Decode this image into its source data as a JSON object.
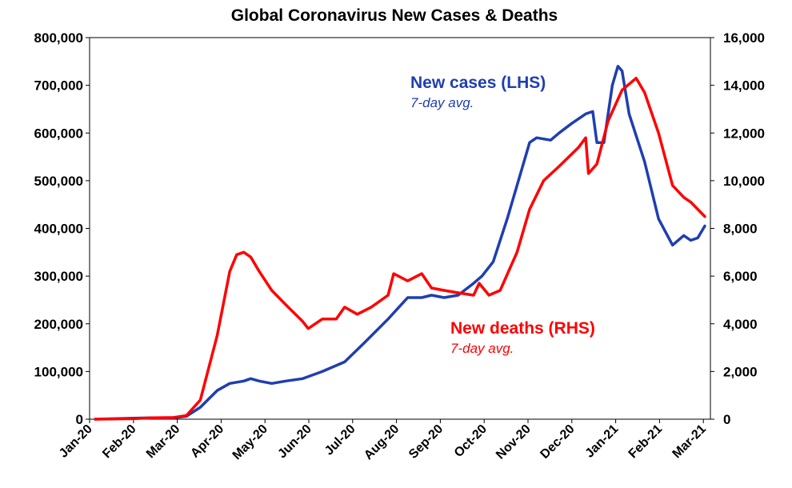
{
  "chart_data": {
    "type": "line",
    "title": "Global Coronavirus New Cases & Deaths",
    "x_tick_labels": [
      "Jan-20",
      "Feb-20",
      "Mar-20",
      "Apr-20",
      "May-20",
      "Jun-20",
      "Jul-20",
      "Aug-20",
      "Sep-20",
      "Oct-20",
      "Nov-20",
      "Dec-20",
      "Jan-21",
      "Feb-21",
      "Mar-21"
    ],
    "y_left": {
      "ylim": [
        0,
        800000
      ],
      "ticks": [
        "0",
        "100,000",
        "200,000",
        "300,000",
        "400,000",
        "500,000",
        "600,000",
        "700,000",
        "800,000"
      ]
    },
    "y_right": {
      "ylim": [
        0,
        16000
      ],
      "ticks": [
        "0",
        "2,000",
        "4,000",
        "6,000",
        "8,000",
        "10,000",
        "12,000",
        "14,000",
        "16,000"
      ]
    },
    "grid": false,
    "annotations": {
      "cases_label": "New cases (LHS)",
      "cases_sub": "7-day avg.",
      "deaths_label": "New deaths (RHS)",
      "deaths_sub": "7-day avg."
    },
    "series": [
      {
        "name": "New cases (LHS)",
        "axis": "left",
        "color": "#1f3fb0",
        "points": [
          [
            "2020-01-05",
            0
          ],
          [
            "2020-02-01",
            2000
          ],
          [
            "2020-02-15",
            3000
          ],
          [
            "2020-03-01",
            3000
          ],
          [
            "2020-03-10",
            6000
          ],
          [
            "2020-03-20",
            25000
          ],
          [
            "2020-04-01",
            60000
          ],
          [
            "2020-04-10",
            75000
          ],
          [
            "2020-04-20",
            80000
          ],
          [
            "2020-04-25",
            85000
          ],
          [
            "2020-05-01",
            80000
          ],
          [
            "2020-05-10",
            75000
          ],
          [
            "2020-05-20",
            80000
          ],
          [
            "2020-06-01",
            85000
          ],
          [
            "2020-06-15",
            100000
          ],
          [
            "2020-07-01",
            120000
          ],
          [
            "2020-07-15",
            160000
          ],
          [
            "2020-08-01",
            210000
          ],
          [
            "2020-08-15",
            255000
          ],
          [
            "2020-08-25",
            255000
          ],
          [
            "2020-09-01",
            260000
          ],
          [
            "2020-09-10",
            255000
          ],
          [
            "2020-09-20",
            260000
          ],
          [
            "2020-10-01",
            285000
          ],
          [
            "2020-10-07",
            300000
          ],
          [
            "2020-10-15",
            330000
          ],
          [
            "2020-10-25",
            420000
          ],
          [
            "2020-11-01",
            490000
          ],
          [
            "2020-11-10",
            580000
          ],
          [
            "2020-11-15",
            590000
          ],
          [
            "2020-11-25",
            585000
          ],
          [
            "2020-12-01",
            600000
          ],
          [
            "2020-12-10",
            620000
          ],
          [
            "2020-12-20",
            640000
          ],
          [
            "2020-12-25",
            645000
          ],
          [
            "2020-12-28",
            580000
          ],
          [
            "2021-01-02",
            580000
          ],
          [
            "2021-01-08",
            700000
          ],
          [
            "2021-01-12",
            740000
          ],
          [
            "2021-01-15",
            730000
          ],
          [
            "2021-01-20",
            640000
          ],
          [
            "2021-01-31",
            540000
          ],
          [
            "2021-02-10",
            420000
          ],
          [
            "2021-02-20",
            365000
          ],
          [
            "2021-02-28",
            385000
          ],
          [
            "2021-03-05",
            375000
          ],
          [
            "2021-03-10",
            380000
          ],
          [
            "2021-03-15",
            405000
          ]
        ]
      },
      {
        "name": "New deaths (RHS)",
        "axis": "right",
        "color": "#ff0000",
        "points": [
          [
            "2020-01-05",
            0
          ],
          [
            "2020-02-01",
            20
          ],
          [
            "2020-02-15",
            60
          ],
          [
            "2020-03-01",
            70
          ],
          [
            "2020-03-10",
            150
          ],
          [
            "2020-03-20",
            800
          ],
          [
            "2020-04-01",
            3500
          ],
          [
            "2020-04-10",
            6200
          ],
          [
            "2020-04-15",
            6900
          ],
          [
            "2020-04-20",
            7000
          ],
          [
            "2020-04-25",
            6800
          ],
          [
            "2020-05-01",
            6200
          ],
          [
            "2020-05-10",
            5400
          ],
          [
            "2020-05-20",
            4800
          ],
          [
            "2020-06-01",
            4100
          ],
          [
            "2020-06-05",
            3800
          ],
          [
            "2020-06-15",
            4200
          ],
          [
            "2020-06-25",
            4200
          ],
          [
            "2020-07-01",
            4700
          ],
          [
            "2020-07-10",
            4400
          ],
          [
            "2020-07-20",
            4700
          ],
          [
            "2020-08-01",
            5200
          ],
          [
            "2020-08-05",
            6100
          ],
          [
            "2020-08-15",
            5800
          ],
          [
            "2020-08-25",
            6100
          ],
          [
            "2020-09-01",
            5500
          ],
          [
            "2020-09-10",
            5400
          ],
          [
            "2020-09-20",
            5300
          ],
          [
            "2020-10-01",
            5200
          ],
          [
            "2020-10-05",
            5700
          ],
          [
            "2020-10-12",
            5200
          ],
          [
            "2020-10-20",
            5400
          ],
          [
            "2020-11-01",
            7000
          ],
          [
            "2020-11-10",
            8800
          ],
          [
            "2020-11-20",
            10000
          ],
          [
            "2020-12-01",
            10600
          ],
          [
            "2020-12-15",
            11400
          ],
          [
            "2020-12-20",
            11800
          ],
          [
            "2020-12-22",
            10300
          ],
          [
            "2020-12-28",
            10700
          ],
          [
            "2021-01-05",
            12500
          ],
          [
            "2021-01-15",
            13800
          ],
          [
            "2021-01-25",
            14300
          ],
          [
            "2021-01-31",
            13700
          ],
          [
            "2021-02-10",
            12000
          ],
          [
            "2021-02-20",
            9800
          ],
          [
            "2021-02-28",
            9300
          ],
          [
            "2021-03-05",
            9100
          ],
          [
            "2021-03-10",
            8800
          ],
          [
            "2021-03-15",
            8500
          ]
        ]
      }
    ]
  }
}
